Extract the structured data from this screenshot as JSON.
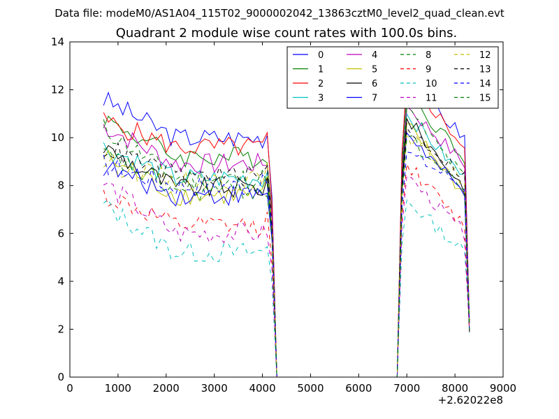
{
  "figure": {
    "suptitle": "Data file: modeM0/AS1A04_115T02_9000002042_13863cztM0_level2_quad_clean.evt"
  },
  "chart_data": {
    "type": "line",
    "title": "Quadrant 2 module wise count rates with 100.0s bins.",
    "xlabel": "",
    "ylabel": "",
    "offset_label": "+2.62022e8",
    "xlim": [
      0,
      9000
    ],
    "ylim": [
      0,
      14
    ],
    "x_ticks": [
      "0",
      "1000",
      "2000",
      "3000",
      "4000",
      "5000",
      "6000",
      "7000",
      "8000",
      "9000"
    ],
    "y_ticks": [
      "0",
      "2",
      "4",
      "6",
      "8",
      "10",
      "12",
      "14"
    ],
    "legend_position": "top-right",
    "legend_columns": 4,
    "x": [
      700,
      800,
      900,
      1000,
      1100,
      1200,
      1300,
      1400,
      1500,
      1600,
      1700,
      1800,
      1900,
      2000,
      2100,
      2200,
      2300,
      2400,
      2500,
      2600,
      2700,
      2800,
      2900,
      3000,
      3100,
      3200,
      3300,
      3400,
      3500,
      3600,
      3700,
      3800,
      3900,
      4000,
      4100,
      4200,
      4300,
      4400,
      4500,
      4600,
      4700,
      4800,
      4900,
      5000,
      5100,
      5200,
      5300,
      5400,
      5500,
      5600,
      5700,
      5800,
      5900,
      6000,
      6100,
      6200,
      6300,
      6400,
      6500,
      6600,
      6700,
      6800,
      6900,
      7000,
      7100,
      7200,
      7300,
      7400,
      7500,
      7600,
      7700,
      7800,
      7900,
      8000,
      8100,
      8200,
      8300
    ],
    "series": [
      {
        "name": "0",
        "color": "#0000ff",
        "dashed": false,
        "level": 10.0,
        "start": 11.6,
        "peak": 12.4
      },
      {
        "name": "1",
        "color": "#008000",
        "dashed": false,
        "level": 9.2,
        "start": 10.8,
        "peak": 11.8
      },
      {
        "name": "2",
        "color": "#ff0000",
        "dashed": false,
        "level": 9.6,
        "start": 10.7,
        "peak": 12.5
      },
      {
        "name": "3",
        "color": "#00bfbf",
        "dashed": false,
        "level": 8.3,
        "start": 9.6,
        "peak": 11.0
      },
      {
        "name": "4",
        "color": "#bf00bf",
        "dashed": false,
        "level": 8.9,
        "start": 10.5,
        "peak": 11.3
      },
      {
        "name": "5",
        "color": "#bfbf00",
        "dashed": false,
        "level": 7.6,
        "start": 9.2,
        "peak": 10.6
      },
      {
        "name": "6",
        "color": "#000000",
        "dashed": false,
        "level": 7.9,
        "start": 9.6,
        "peak": 10.8
      },
      {
        "name": "7",
        "color": "#0000ff",
        "dashed": false,
        "level": 7.6,
        "start": 8.8,
        "peak": 10.2
      },
      {
        "name": "8",
        "color": "#008000",
        "dashed": true,
        "level": 8.3,
        "start": 10.4,
        "peak": 11.2
      },
      {
        "name": "9",
        "color": "#ff0000",
        "dashed": true,
        "level": 6.3,
        "start": 7.6,
        "peak": 8.9
      },
      {
        "name": "10",
        "color": "#00bfbf",
        "dashed": true,
        "level": 5.2,
        "start": 7.2,
        "peak": 7.4
      },
      {
        "name": "11",
        "color": "#bf00bf",
        "dashed": true,
        "level": 6.0,
        "start": 8.1,
        "peak": 8.4
      },
      {
        "name": "12",
        "color": "#bfbf00",
        "dashed": true,
        "level": 8.2,
        "start": 9.0,
        "peak": 10.1
      },
      {
        "name": "13",
        "color": "#000000",
        "dashed": true,
        "level": 8.4,
        "start": 9.6,
        "peak": 10.4
      },
      {
        "name": "14",
        "color": "#0000ff",
        "dashed": true,
        "level": 8.0,
        "start": 8.9,
        "peak": 9.4
      },
      {
        "name": "15",
        "color": "#008000",
        "dashed": true,
        "level": 7.8,
        "start": 9.3,
        "peak": 10.0
      }
    ]
  }
}
